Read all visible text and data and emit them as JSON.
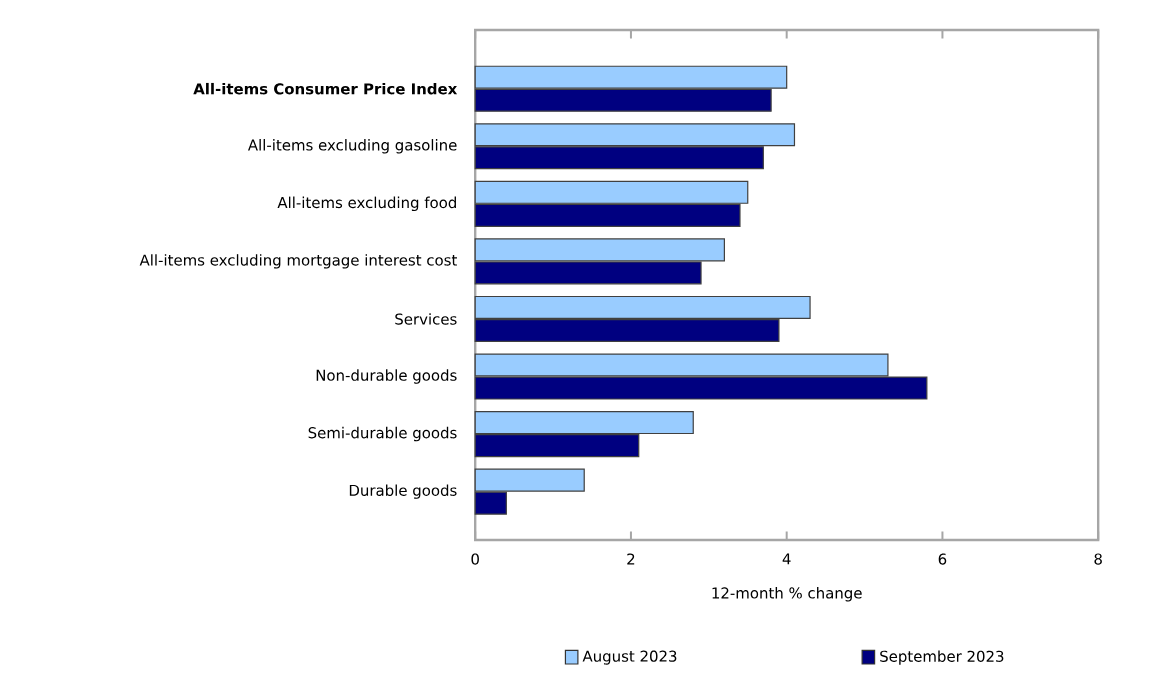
{
  "chart_data": {
    "type": "bar",
    "orientation": "horizontal",
    "categories": [
      "**All-items Consumer Price Index**",
      "All-items excluding gasoline",
      "All-items excluding food",
      "All-items excluding mortgage interest cost",
      "Services",
      "Non-durable goods",
      "Semi-durable goods",
      "Durable goods"
    ],
    "series": [
      {
        "name": "August 2023",
        "color": "#99ccff",
        "values": [
          4.0,
          4.1,
          3.5,
          3.2,
          4.3,
          5.3,
          2.8,
          1.4
        ]
      },
      {
        "name": "September 2023",
        "color": "#000080",
        "values": [
          3.8,
          3.7,
          3.4,
          2.9,
          3.9,
          5.8,
          2.1,
          0.4
        ]
      }
    ],
    "xlabel": "12-month % change",
    "xlim": [
      0,
      8
    ],
    "xticks": [
      0,
      2,
      4,
      6,
      8
    ],
    "grid": false,
    "legend": "bottom"
  }
}
